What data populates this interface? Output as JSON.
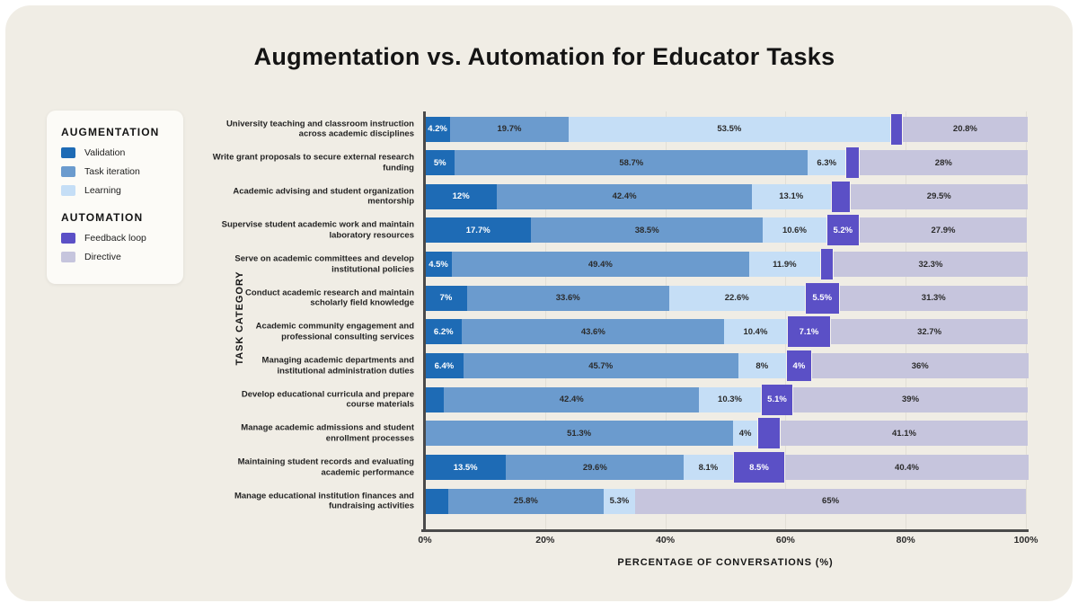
{
  "title": "Augmentation vs. Automation for Educator Tasks",
  "colors": {
    "page_background": "#ffffff",
    "card_background": "#f0ede5",
    "legend_card_background": "#fcfbf7",
    "axis_line": "#4a4a4a",
    "gridline": "#e2dfd6"
  },
  "legend": {
    "groups": [
      {
        "title": "AUGMENTATION",
        "items": [
          {
            "label": "Validation",
            "series": "validation"
          },
          {
            "label": "Task iteration",
            "series": "task_iteration"
          },
          {
            "label": "Learning",
            "series": "learning"
          }
        ]
      },
      {
        "title": "AUTOMATION",
        "items": [
          {
            "label": "Feedback loop",
            "series": "feedback_loop"
          },
          {
            "label": "Directive",
            "series": "directive"
          }
        ]
      }
    ]
  },
  "chart_data": {
    "type": "bar",
    "subtype": "horizontal-stacked",
    "title": "Augmentation vs. Automation for Educator Tasks",
    "xlabel": "PERCENTAGE OF CONVERSATIONS (%)",
    "ylabel": "TASK CATEGORY",
    "xlim": [
      0,
      100
    ],
    "x_ticks": [
      {
        "value": 0,
        "label": "0%"
      },
      {
        "value": 20,
        "label": "20%"
      },
      {
        "value": 40,
        "label": "40%"
      },
      {
        "value": 60,
        "label": "60%"
      },
      {
        "value": 80,
        "label": "80%"
      },
      {
        "value": 100,
        "label": "100%"
      }
    ],
    "series_order": [
      "validation",
      "task_iteration",
      "learning",
      "feedback_loop",
      "directive"
    ],
    "series_meta": {
      "validation": {
        "name": "Validation",
        "color": "#1e6bb5",
        "label_color": "#ffffff",
        "popout": false
      },
      "task_iteration": {
        "name": "Task iteration",
        "color": "#6b9bce",
        "label_color": "#2b2b2b",
        "popout": false
      },
      "learning": {
        "name": "Learning",
        "color": "#c5def6",
        "label_color": "#2b2b2b",
        "popout": false
      },
      "feedback_loop": {
        "name": "Feedback loop",
        "color": "#5b50c6",
        "label_color": "#ffffff",
        "popout": true
      },
      "directive": {
        "name": "Directive",
        "color": "#c6c5dd",
        "label_color": "#2b2b2b",
        "popout": false
      }
    },
    "rows": [
      {
        "category": "University teaching and classroom instruction across academic disciplines",
        "values": {
          "validation": 4.2,
          "task_iteration": 19.7,
          "learning": 53.5,
          "feedback_loop": 1.8,
          "directive": 20.8
        },
        "labels": {
          "validation": "4.2%",
          "task_iteration": "19.7%",
          "learning": "53.5%",
          "directive": "20.8%"
        }
      },
      {
        "category": "Write grant proposals to secure external research funding",
        "values": {
          "validation": 5.0,
          "task_iteration": 58.7,
          "learning": 6.3,
          "feedback_loop": 2.0,
          "directive": 28.0
        },
        "labels": {
          "validation": "5%",
          "task_iteration": "58.7%",
          "learning": "6.3%",
          "directive": "28%"
        }
      },
      {
        "category": "Academic advising and student organization mentorship",
        "values": {
          "validation": 12.0,
          "task_iteration": 42.4,
          "learning": 13.1,
          "feedback_loop": 3.0,
          "directive": 29.5
        },
        "labels": {
          "validation": "12%",
          "task_iteration": "42.4%",
          "learning": "13.1%",
          "directive": "29.5%"
        }
      },
      {
        "category": "Supervise student academic work and maintain laboratory resources",
        "values": {
          "validation": 17.7,
          "task_iteration": 38.5,
          "learning": 10.6,
          "feedback_loop": 5.2,
          "directive": 27.9
        },
        "labels": {
          "validation": "17.7%",
          "task_iteration": "38.5%",
          "learning": "10.6%",
          "feedback_loop": "5.2%",
          "directive": "27.9%"
        }
      },
      {
        "category": "Serve on academic committees and develop institutional policies",
        "values": {
          "validation": 4.5,
          "task_iteration": 49.4,
          "learning": 11.9,
          "feedback_loop": 1.9,
          "directive": 32.3
        },
        "labels": {
          "validation": "4.5%",
          "task_iteration": "49.4%",
          "learning": "11.9%",
          "directive": "32.3%"
        }
      },
      {
        "category": "Conduct academic research and maintain scholarly field knowledge",
        "values": {
          "validation": 7.0,
          "task_iteration": 33.6,
          "learning": 22.6,
          "feedback_loop": 5.5,
          "directive": 31.3
        },
        "labels": {
          "validation": "7%",
          "task_iteration": "33.6%",
          "learning": "22.6%",
          "feedback_loop": "5.5%",
          "directive": "31.3%"
        }
      },
      {
        "category": "Academic community engagement and professional consulting services",
        "values": {
          "validation": 6.2,
          "task_iteration": 43.6,
          "learning": 10.4,
          "feedback_loop": 7.1,
          "directive": 32.7
        },
        "labels": {
          "validation": "6.2%",
          "task_iteration": "43.6%",
          "learning": "10.4%",
          "feedback_loop": "7.1%",
          "directive": "32.7%"
        }
      },
      {
        "category": "Managing academic departments and institutional administration duties",
        "values": {
          "validation": 6.4,
          "task_iteration": 45.7,
          "learning": 8.0,
          "feedback_loop": 4.0,
          "directive": 36.0
        },
        "labels": {
          "validation": "6.4%",
          "task_iteration": "45.7%",
          "learning": "8%",
          "feedback_loop": "4%",
          "directive": "36%"
        }
      },
      {
        "category": "Develop educational curricula and prepare course materials",
        "values": {
          "validation": 3.2,
          "task_iteration": 42.4,
          "learning": 10.3,
          "feedback_loop": 5.1,
          "directive": 39.0
        },
        "labels": {
          "task_iteration": "42.4%",
          "learning": "10.3%",
          "feedback_loop": "5.1%",
          "directive": "39%"
        }
      },
      {
        "category": "Manage academic admissions and student enrollment processes",
        "values": {
          "validation": 0,
          "task_iteration": 51.3,
          "learning": 4.0,
          "feedback_loop": 3.6,
          "directive": 41.1
        },
        "labels": {
          "task_iteration": "51.3%",
          "learning": "4%",
          "directive": "41.1%"
        }
      },
      {
        "category": "Maintaining student records and evaluating academic performance",
        "values": {
          "validation": 13.5,
          "task_iteration": 29.6,
          "learning": 8.1,
          "feedback_loop": 8.5,
          "directive": 40.4
        },
        "labels": {
          "validation": "13.5%",
          "task_iteration": "29.6%",
          "learning": "8.1%",
          "feedback_loop": "8.5%",
          "directive": "40.4%"
        }
      },
      {
        "category": "Manage educational institution finances and fundraising activities",
        "values": {
          "validation": 3.9,
          "task_iteration": 25.8,
          "learning": 5.3,
          "feedback_loop": 0,
          "directive": 65.0
        },
        "labels": {
          "task_iteration": "25.8%",
          "learning": "5.3%",
          "directive": "65%"
        }
      }
    ]
  }
}
